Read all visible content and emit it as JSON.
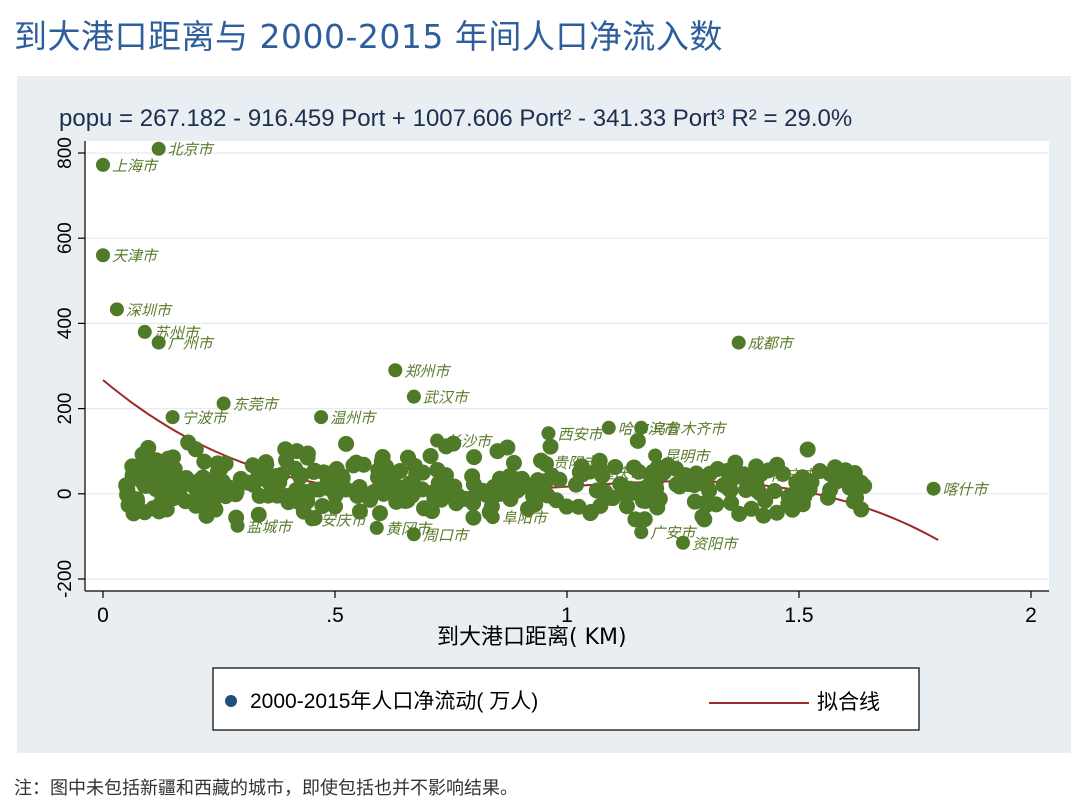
{
  "page": {
    "title": "到大港口距离与 2000-2015 年间人口净流入数",
    "footnote": "注：图中未包括新疆和西藏的城市，即使包括也并不影响结果。"
  },
  "colors": {
    "panel_bg": "#e9eef2",
    "plot_bg": "#ffffff",
    "points": "#4f7a28",
    "fit_line": "#9c2a2a",
    "legend_marker": "#1f4f7a",
    "title": "#2e5f9c"
  },
  "chart_data": {
    "type": "scatter",
    "title": "popu = 267.182 - 916.459 Port + 1007.606 Port² - 341.33 Port³  R² = 29.0%",
    "xlabel": "到大港口距离( KM)",
    "ylabel": "",
    "xlim": [
      0,
      2
    ],
    "ylim": [
      -200,
      800
    ],
    "xticks": [
      "0",
      ".5",
      "1",
      "1.5",
      "2"
    ],
    "yticks": [
      "-200",
      "0",
      "200",
      "400",
      "600",
      "800"
    ],
    "grid": true,
    "legend_position": "bottom",
    "series": [
      {
        "name": "2000-2015年人口净流动( 万人)",
        "kind": "scatter",
        "labeled_points": [
          {
            "x": 0.0,
            "y": 772,
            "label": "上海市"
          },
          {
            "x": 0.12,
            "y": 810,
            "label": "北京市"
          },
          {
            "x": 0.0,
            "y": 560,
            "label": "天津市"
          },
          {
            "x": 0.03,
            "y": 433,
            "label": "深圳市"
          },
          {
            "x": 0.09,
            "y": 380,
            "label": "苏州市"
          },
          {
            "x": 0.12,
            "y": 355,
            "label": "广州市"
          },
          {
            "x": 1.37,
            "y": 355,
            "label": "成都市"
          },
          {
            "x": 0.63,
            "y": 290,
            "label": "郑州市"
          },
          {
            "x": 0.67,
            "y": 228,
            "label": "武汉市"
          },
          {
            "x": 0.26,
            "y": 212,
            "label": "东莞市"
          },
          {
            "x": 0.96,
            "y": 142,
            "label": "西安市"
          },
          {
            "x": 1.09,
            "y": 155,
            "label": "哈尔滨市"
          },
          {
            "x": 1.16,
            "y": 155,
            "label": "乌鲁木齐市"
          },
          {
            "x": 1.19,
            "y": 90,
            "label": "昆明市"
          },
          {
            "x": 0.72,
            "y": 125,
            "label": "长沙市"
          },
          {
            "x": 0.47,
            "y": 180,
            "label": "温州市"
          },
          {
            "x": 0.15,
            "y": 180,
            "label": "宁波市"
          },
          {
            "x": 1.42,
            "y": 45,
            "label": "南宁市"
          },
          {
            "x": 0.95,
            "y": 75,
            "label": "贵阳市"
          },
          {
            "x": 1.05,
            "y": 50,
            "label": "重庆市"
          },
          {
            "x": 1.79,
            "y": 12,
            "label": "喀什市"
          },
          {
            "x": 0.29,
            "y": -75,
            "label": "盐城市"
          },
          {
            "x": 0.45,
            "y": -60,
            "label": "安庆市"
          },
          {
            "x": 0.59,
            "y": -80,
            "label": "黄冈市"
          },
          {
            "x": 0.67,
            "y": -95,
            "label": "周口市"
          },
          {
            "x": 1.16,
            "y": -90,
            "label": "广安市"
          },
          {
            "x": 1.25,
            "y": -115,
            "label": "资阳市"
          },
          {
            "x": 0.84,
            "y": -55,
            "label": "阜阳市"
          }
        ]
      },
      {
        "name": "拟合线",
        "kind": "line",
        "equation": {
          "intercept": 267.182,
          "b1": -916.459,
          "b2": 1007.606,
          "b3": -341.33
        },
        "x_range": [
          0,
          1.8
        ]
      }
    ]
  }
}
